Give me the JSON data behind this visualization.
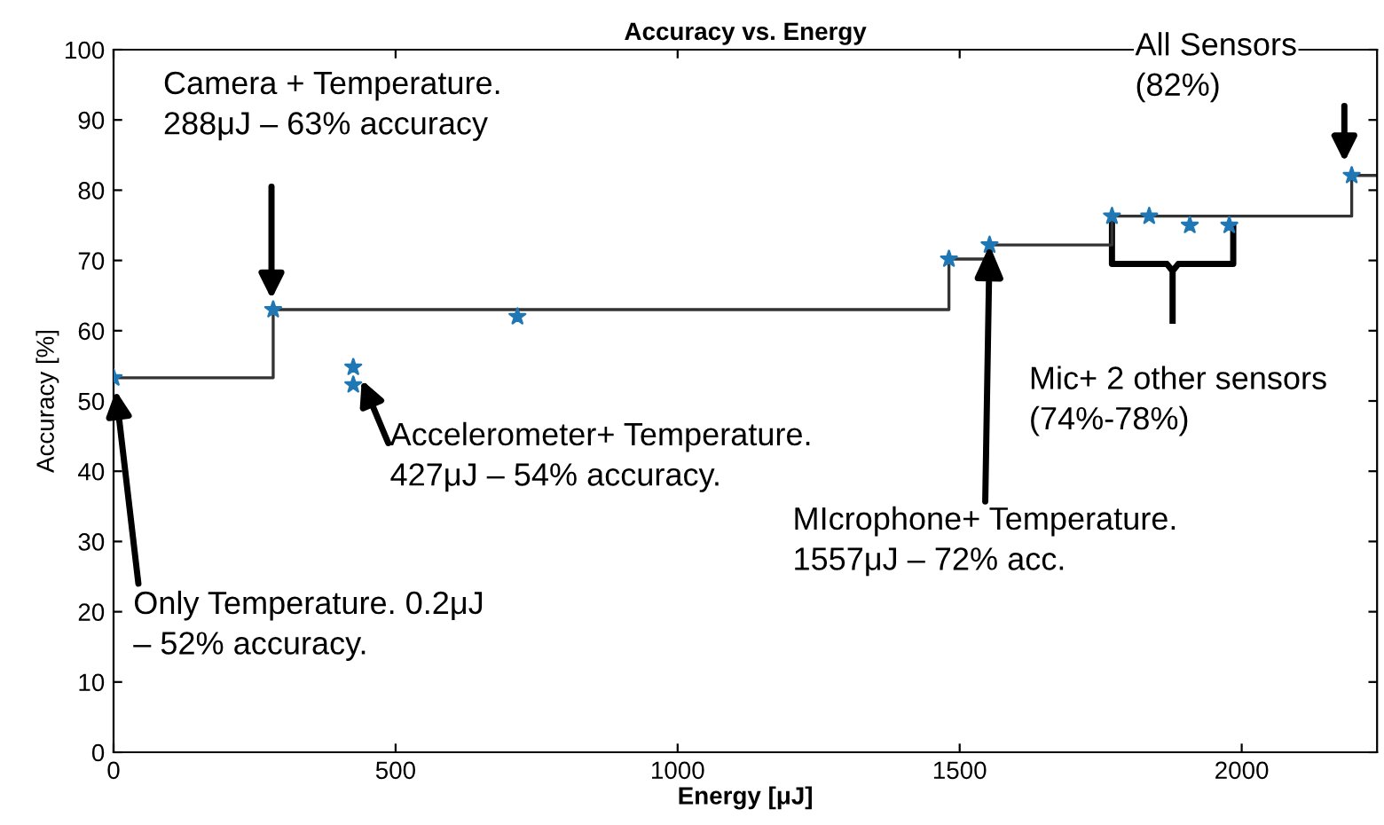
{
  "chart_data": {
    "type": "scatter",
    "title": "Accuracy vs. Energy",
    "xlabel": "Energy [μJ]",
    "ylabel": "Accuracy [%]",
    "series": [
      {
        "color": "#1f77b4",
        "marker": "star",
        "x": [
          0.2,
          283,
          425,
          425,
          716,
          1481,
          1553,
          1770,
          1836,
          1908,
          1978,
          2195
        ],
        "values": [
          53.3,
          63,
          54.8,
          52.3,
          62,
          70.2,
          72.2,
          76.3,
          76.3,
          75,
          75,
          82.1
        ]
      },
      {
        "type": "step",
        "color": "#333333",
        "line_style": "solid",
        "x": [
          0.2,
          283,
          1481,
          1553,
          1770,
          2195,
          2240
        ],
        "values": [
          53.3,
          63,
          70.2,
          72.2,
          76.3,
          82.1,
          82.1
        ]
      }
    ],
    "xlim": [
      0,
      2240
    ],
    "ylim": [
      0,
      100
    ],
    "xticks": [
      0,
      500,
      1000,
      1500,
      2000
    ],
    "yticks": [
      0,
      10,
      20,
      30,
      40,
      50,
      60,
      70,
      80,
      90,
      100
    ],
    "grid": false,
    "legend": false,
    "annotations": [
      "Camera + Temperature.\n288μJ – 63% accuracy",
      "Accelerometer+ Temperature.\n427μJ – 54% accuracy.",
      "Only Temperature. 0.2μJ\n– 52% accuracy.",
      {
        "text": "MIcrophone+ Temperature.\n1557μJ – 72% acc.",
        "x": 1553,
        "y": 72.2
      },
      "Mic+ 2 other sensors\n(74%-78%)",
      "All Sensors\n(82%)"
    ]
  }
}
